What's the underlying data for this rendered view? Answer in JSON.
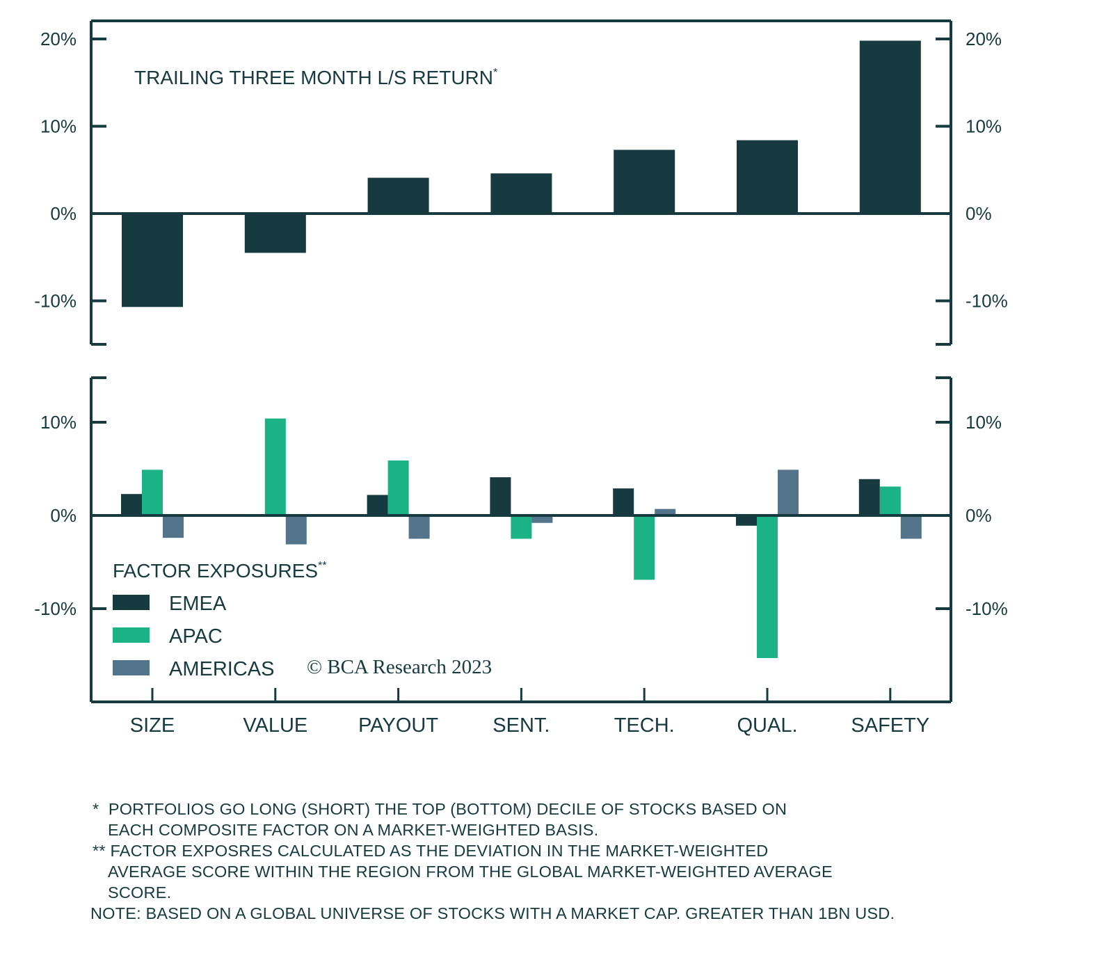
{
  "chart_data": [
    {
      "type": "bar",
      "title": "TRAILING THREE MONTH L/S RETURN*",
      "categories": [
        "SIZE",
        "VALUE",
        "PAYOUT",
        "SENT.",
        "TECH.",
        "QUAL.",
        "SAFETY"
      ],
      "values": [
        -10.7,
        -4.5,
        4.1,
        4.6,
        7.3,
        8.4,
        19.8
      ],
      "ylim": [
        -15,
        22
      ],
      "yticks": [
        20,
        10,
        0,
        -10
      ],
      "ytick_labels": [
        "20%",
        "10%",
        "0%",
        "-10%"
      ],
      "xlabel": "",
      "ylabel": "",
      "units": "%",
      "grid": false,
      "color": "#163a40"
    },
    {
      "type": "bar",
      "title": "FACTOR EXPOSURES**",
      "categories": [
        "SIZE",
        "VALUE",
        "PAYOUT",
        "SENT.",
        "TECH.",
        "QUAL.",
        "SAFETY"
      ],
      "series": [
        {
          "name": "EMEA",
          "color": "#163a40",
          "values": [
            2.3,
            0.0,
            2.2,
            4.1,
            2.9,
            -1.1,
            3.9
          ]
        },
        {
          "name": "APAC",
          "color": "#1bb285",
          "values": [
            4.9,
            10.4,
            5.9,
            -2.5,
            -6.9,
            -15.3,
            3.1
          ]
        },
        {
          "name": "AMERICAS",
          "color": "#53748a",
          "values": [
            -2.4,
            -3.1,
            -2.5,
            -0.8,
            0.7,
            4.9,
            -2.5
          ]
        }
      ],
      "ylim": [
        -20,
        15
      ],
      "yticks": [
        10,
        0,
        -10
      ],
      "ytick_labels": [
        "10%",
        "0%",
        "-10%"
      ],
      "xlabel": "",
      "ylabel": "",
      "units": "%",
      "grid": false,
      "legend": "bottom-left"
    }
  ],
  "copyright": "© BCA Research 2023",
  "notes": [
    {
      "marker": "*",
      "text": "PORTFOLIOS GO LONG (SHORT) THE TOP (BOTTOM) DECILE OF STOCKS BASED ON"
    },
    {
      "marker": "",
      "text": "EACH COMPOSITE FACTOR ON A MARKET-WEIGHTED BASIS."
    },
    {
      "marker": "**",
      "text": "FACTOR EXPOSRES CALCULATED AS THE DEVIATION IN THE MARKET-WEIGHTED"
    },
    {
      "marker": "",
      "text": "AVERAGE SCORE WITHIN THE REGION FROM THE GLOBAL MARKET-WEIGHTED AVERAGE"
    },
    {
      "marker": "",
      "text": "SCORE."
    },
    {
      "marker": "NOTE:",
      "text": "BASED ON A GLOBAL UNIVERSE OF STOCKS WITH A MARKET CAP. GREATER THAN 1BN USD."
    }
  ]
}
